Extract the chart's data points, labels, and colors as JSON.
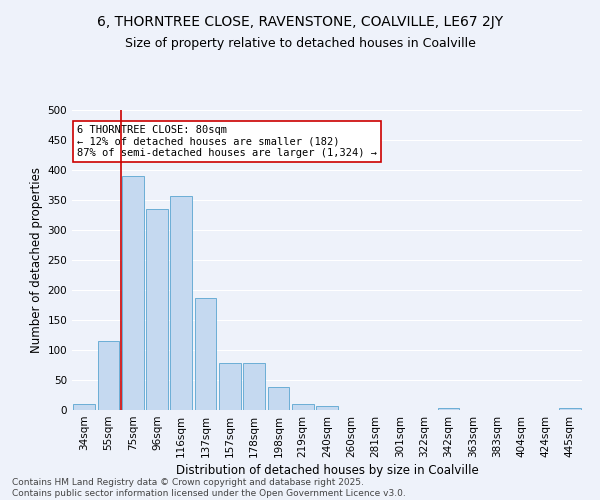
{
  "title_line1": "6, THORNTREE CLOSE, RAVENSTONE, COALVILLE, LE67 2JY",
  "title_line2": "Size of property relative to detached houses in Coalville",
  "xlabel": "Distribution of detached houses by size in Coalville",
  "ylabel": "Number of detached properties",
  "categories": [
    "34sqm",
    "55sqm",
    "75sqm",
    "96sqm",
    "116sqm",
    "137sqm",
    "157sqm",
    "178sqm",
    "198sqm",
    "219sqm",
    "240sqm",
    "260sqm",
    "281sqm",
    "301sqm",
    "322sqm",
    "342sqm",
    "363sqm",
    "383sqm",
    "404sqm",
    "424sqm",
    "445sqm"
  ],
  "values": [
    10,
    115,
    390,
    335,
    357,
    186,
    78,
    78,
    39,
    10,
    7,
    0,
    0,
    0,
    0,
    4,
    0,
    0,
    0,
    0,
    4
  ],
  "bar_color": "#c5d9f0",
  "bar_edge_color": "#6baed6",
  "red_line_x": 1.5,
  "annotation_text": "6 THORNTREE CLOSE: 80sqm\n← 12% of detached houses are smaller (182)\n87% of semi-detached houses are larger (1,324) →",
  "annotation_box_color": "#ffffff",
  "annotation_box_edge_color": "#cc0000",
  "ylim": [
    0,
    500
  ],
  "yticks": [
    0,
    50,
    100,
    150,
    200,
    250,
    300,
    350,
    400,
    450,
    500
  ],
  "footer_line1": "Contains HM Land Registry data © Crown copyright and database right 2025.",
  "footer_line2": "Contains public sector information licensed under the Open Government Licence v3.0.",
  "bg_color": "#eef2fa",
  "grid_color": "#ffffff",
  "title_fontsize": 10,
  "subtitle_fontsize": 9,
  "axis_label_fontsize": 8.5,
  "tick_fontsize": 7.5,
  "annotation_fontsize": 7.5,
  "footer_fontsize": 6.5
}
